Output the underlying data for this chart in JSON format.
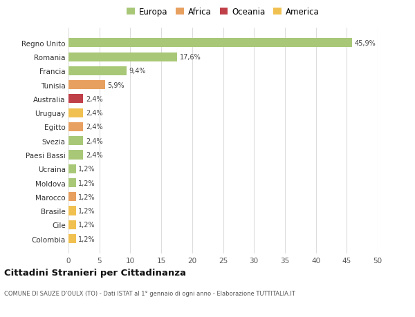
{
  "categories": [
    "Colombia",
    "Cile",
    "Brasile",
    "Marocco",
    "Moldova",
    "Ucraina",
    "Paesi Bassi",
    "Svezia",
    "Egitto",
    "Uruguay",
    "Australia",
    "Tunisia",
    "Francia",
    "Romania",
    "Regno Unito"
  ],
  "values": [
    1.2,
    1.2,
    1.2,
    1.2,
    1.2,
    1.2,
    2.4,
    2.4,
    2.4,
    2.4,
    2.4,
    5.9,
    9.4,
    17.6,
    45.9
  ],
  "colors": [
    "#f0c050",
    "#f0c050",
    "#f0c050",
    "#e8a060",
    "#a8c878",
    "#a8c878",
    "#a8c878",
    "#a8c878",
    "#e8a060",
    "#f0c050",
    "#c0404a",
    "#e8a060",
    "#a8c878",
    "#a8c878",
    "#a8c878"
  ],
  "labels": [
    "1,2%",
    "1,2%",
    "1,2%",
    "1,2%",
    "1,2%",
    "1,2%",
    "2,4%",
    "2,4%",
    "2,4%",
    "2,4%",
    "2,4%",
    "5,9%",
    "9,4%",
    "17,6%",
    "45,9%"
  ],
  "legend": [
    {
      "label": "Europa",
      "color": "#a8c878"
    },
    {
      "label": "Africa",
      "color": "#e8a060"
    },
    {
      "label": "Oceania",
      "color": "#c0404a"
    },
    {
      "label": "America",
      "color": "#f0c050"
    }
  ],
  "title": "Cittadini Stranieri per Cittadinanza",
  "subtitle": "COMUNE DI SAUZE D'OULX (TO) - Dati ISTAT al 1° gennaio di ogni anno - Elaborazione TUTTITALIA.IT",
  "xlim": [
    0,
    50
  ],
  "xticks": [
    0,
    5,
    10,
    15,
    20,
    25,
    30,
    35,
    40,
    45,
    50
  ],
  "background_color": "#ffffff",
  "grid_color": "#dddddd"
}
